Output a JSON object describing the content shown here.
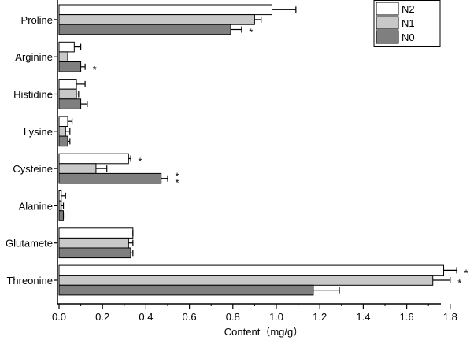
{
  "chart_data": {
    "type": "bar",
    "orientation": "horizontal",
    "title": "",
    "xlabel": "Content（mg/g）",
    "ylabel": "",
    "categories": [
      "Proline",
      "Arginine",
      "Histidine",
      "Lysine",
      "Cysteine",
      "Alanine",
      "Glutamete",
      "Threonine"
    ],
    "xlim": [
      0.0,
      1.9
    ],
    "xticks": [
      "0.0",
      "0.2",
      "0.4",
      "0.6",
      "0.8",
      "1.0",
      "1.2",
      "1.4",
      "1.6",
      "1.8"
    ],
    "series": [
      {
        "name": "N2",
        "color": "#ffffff",
        "values": [
          0.98,
          0.07,
          0.08,
          0.04,
          0.32,
          0.01,
          0.34,
          1.77
        ],
        "errors": [
          0.11,
          0.03,
          0.04,
          0.02,
          0.01,
          0.02,
          0.0,
          0.06
        ],
        "significance": [
          "",
          "",
          "",
          "",
          "*",
          "",
          "",
          "*"
        ]
      },
      {
        "name": "N1",
        "color": "#c8c8c8",
        "values": [
          0.9,
          0.04,
          0.08,
          0.03,
          0.17,
          0.01,
          0.32,
          1.72
        ],
        "errors": [
          0.03,
          0.0,
          0.01,
          0.02,
          0.05,
          0.01,
          0.02,
          0.08
        ],
        "significance": [
          "",
          "",
          "",
          "",
          "",
          "",
          "",
          "*"
        ]
      },
      {
        "name": "N0",
        "color": "#7f7f7f",
        "values": [
          0.79,
          0.1,
          0.1,
          0.04,
          0.47,
          0.02,
          0.33,
          1.17
        ],
        "errors": [
          0.05,
          0.02,
          0.03,
          0.01,
          0.03,
          0.0,
          0.01,
          0.12
        ],
        "significance": [
          "*",
          "*",
          "",
          "",
          "**",
          "",
          "",
          ""
        ]
      }
    ],
    "legend": {
      "position": "top-right",
      "order": [
        "N2",
        "N1",
        "N0"
      ]
    },
    "grid": false
  }
}
